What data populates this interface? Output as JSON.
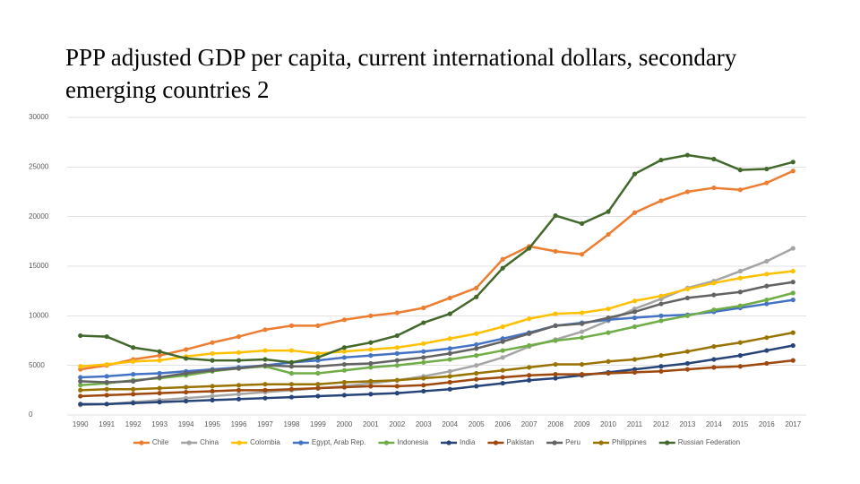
{
  "chart_data": {
    "type": "line",
    "title": "PPP adjusted GDP per capita, current international dollars, secondary emerging countries 2",
    "categories": [
      "1990",
      "1991",
      "1992",
      "1993",
      "1994",
      "1995",
      "1996",
      "1997",
      "1998",
      "1999",
      "2000",
      "2001",
      "2002",
      "2003",
      "2004",
      "2005",
      "2006",
      "2007",
      "2008",
      "2009",
      "2010",
      "2011",
      "2012",
      "2013",
      "2014",
      "2015",
      "2016",
      "2017"
    ],
    "ylim": [
      0,
      30000
    ],
    "yticks": [
      0,
      5000,
      10000,
      15000,
      20000,
      25000,
      30000
    ],
    "grid": true,
    "legend": "bottom",
    "series": [
      {
        "name": "Chile",
        "color": "#ED7D31",
        "values": [
          4600,
          5000,
          5600,
          6000,
          6600,
          7300,
          7900,
          8600,
          9000,
          9000,
          9600,
          10000,
          10300,
          10800,
          11800,
          12800,
          15700,
          17000,
          16500,
          16200,
          18200,
          20400,
          21600,
          22500,
          22900,
          22700,
          23400,
          24600
        ]
      },
      {
        "name": "China",
        "color": "#A5A5A5",
        "values": [
          1000,
          1100,
          1300,
          1500,
          1700,
          1900,
          2100,
          2300,
          2500,
          2700,
          2900,
          3200,
          3500,
          3900,
          4400,
          5000,
          5800,
          6900,
          7600,
          8400,
          9500,
          10700,
          11700,
          12800,
          13500,
          14500,
          15500,
          16800
        ]
      },
      {
        "name": "Colombia",
        "color": "#FFC000",
        "values": [
          4900,
          5100,
          5400,
          5500,
          5900,
          6200,
          6300,
          6500,
          6500,
          6200,
          6400,
          6600,
          6800,
          7200,
          7700,
          8200,
          8900,
          9700,
          10200,
          10300,
          10700,
          11500,
          12000,
          12700,
          13300,
          13800,
          14200,
          14500
        ]
      },
      {
        "name": "Egypt, Arab Rep.",
        "color": "#4472C4",
        "values": [
          3800,
          3900,
          4100,
          4200,
          4400,
          4600,
          4800,
          5000,
          5300,
          5500,
          5800,
          6000,
          6200,
          6400,
          6700,
          7100,
          7700,
          8300,
          9000,
          9300,
          9600,
          9800,
          10000,
          10100,
          10400,
          10800,
          11200,
          11600
        ]
      },
      {
        "name": "Indonesia",
        "color": "#70AD47",
        "values": [
          3000,
          3200,
          3500,
          3700,
          4000,
          4400,
          4700,
          4900,
          4200,
          4200,
          4500,
          4800,
          5000,
          5300,
          5600,
          6000,
          6500,
          7000,
          7500,
          7800,
          8300,
          8900,
          9500,
          10000,
          10600,
          11000,
          11600,
          12300
        ]
      },
      {
        "name": "India",
        "color": "#264478",
        "values": [
          1100,
          1100,
          1200,
          1300,
          1400,
          1500,
          1600,
          1700,
          1800,
          1900,
          2000,
          2100,
          2200,
          2400,
          2600,
          2900,
          3200,
          3500,
          3700,
          4000,
          4300,
          4600,
          4900,
          5200,
          5600,
          6000,
          6500,
          7000
        ]
      },
      {
        "name": "Pakistan",
        "color": "#9E480E",
        "values": [
          1900,
          2000,
          2100,
          2200,
          2300,
          2400,
          2500,
          2500,
          2600,
          2700,
          2800,
          2900,
          2900,
          3000,
          3300,
          3600,
          3800,
          4000,
          4100,
          4100,
          4200,
          4300,
          4400,
          4600,
          4800,
          4900,
          5200,
          5500
        ]
      },
      {
        "name": "Peru",
        "color": "#636363",
        "values": [
          3400,
          3300,
          3400,
          3800,
          4200,
          4500,
          4700,
          5000,
          4900,
          4900,
          5100,
          5200,
          5500,
          5800,
          6200,
          6700,
          7400,
          8200,
          9000,
          9200,
          9800,
          10400,
          11200,
          11800,
          12100,
          12400,
          13000,
          13400
        ]
      },
      {
        "name": "Philippines",
        "color": "#997300",
        "values": [
          2500,
          2600,
          2600,
          2700,
          2800,
          2900,
          3000,
          3100,
          3100,
          3100,
          3300,
          3400,
          3500,
          3700,
          3900,
          4200,
          4500,
          4800,
          5100,
          5100,
          5400,
          5600,
          6000,
          6400,
          6900,
          7300,
          7800,
          8300
        ]
      },
      {
        "name": "Russian Federation",
        "color": "#43682B",
        "values": [
          8000,
          7900,
          6800,
          6400,
          5700,
          5500,
          5500,
          5600,
          5300,
          5800,
          6800,
          7300,
          8000,
          9300,
          10200,
          11900,
          14800,
          16800,
          20100,
          19300,
          20500,
          24300,
          25700,
          26200,
          25800,
          24700,
          24800,
          25500
        ]
      }
    ]
  }
}
